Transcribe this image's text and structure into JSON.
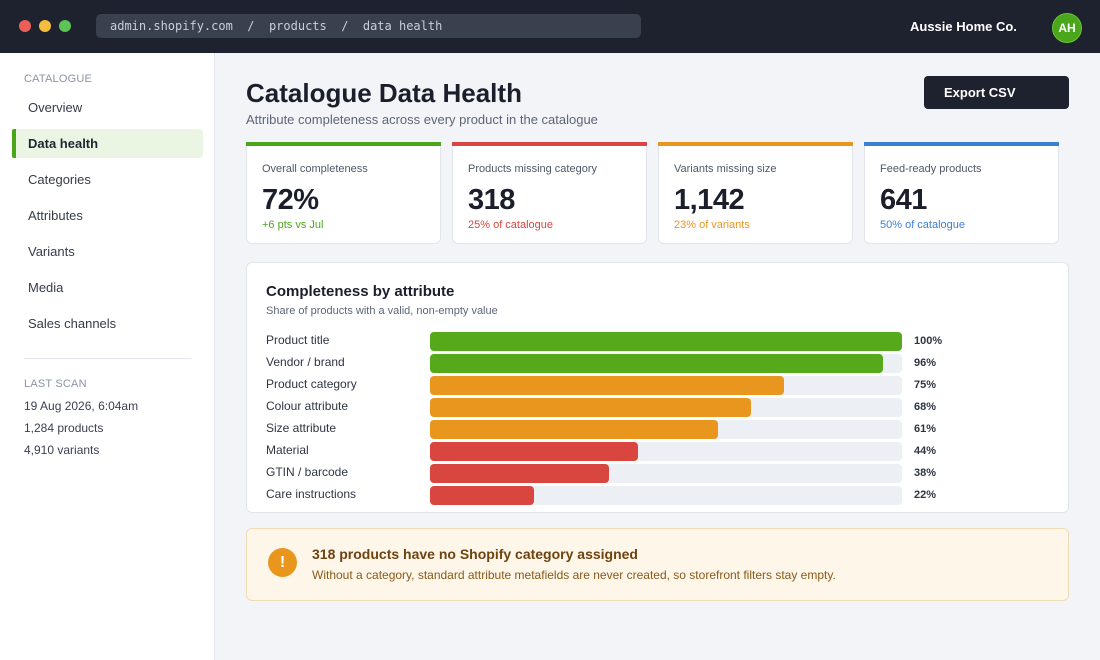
{
  "browser": {
    "address": "admin.shopify.com  /  products  /  data health",
    "store_name": "Aussie Home Co.",
    "avatar_initials": "AH"
  },
  "sidebar": {
    "section_label": "CATALOGUE",
    "items": [
      {
        "label": "Overview",
        "active": false
      },
      {
        "label": "Data health",
        "active": true
      },
      {
        "label": "Categories",
        "active": false
      },
      {
        "label": "Attributes",
        "active": false
      },
      {
        "label": "Variants",
        "active": false
      },
      {
        "label": "Media",
        "active": false
      },
      {
        "label": "Sales channels",
        "active": false
      }
    ],
    "last_scan": {
      "label": "LAST SCAN",
      "date": "19 Aug 2026, 6:04am",
      "products": "1,284 products",
      "variants": "4,910 variants"
    }
  },
  "header": {
    "title": "Catalogue Data Health",
    "subtitle": "Attribute completeness across every product in the catalogue",
    "export_label": "Export CSV"
  },
  "stats": [
    {
      "label": "Overall completeness",
      "value": "72%",
      "note": "+6 pts vs Jul",
      "color": "#4aa61a"
    },
    {
      "label": "Products missing category",
      "value": "318",
      "note": "25% of catalogue",
      "color": "#d9453f"
    },
    {
      "label": "Variants missing size",
      "value": "1,142",
      "note": "23% of variants",
      "color": "#e8961e"
    },
    {
      "label": "Feed-ready products",
      "value": "641",
      "note": "50% of catalogue",
      "color": "#3b7fd4"
    }
  ],
  "completeness": {
    "title": "Completeness by attribute",
    "subtitle": "Share of products with a valid, non-empty value",
    "rows": [
      {
        "label": "Product title",
        "percent": 100,
        "pct_label": "100%",
        "color": "#55a91a"
      },
      {
        "label": "Vendor / brand",
        "percent": 96,
        "pct_label": "96%",
        "color": "#55a91a"
      },
      {
        "label": "Product category",
        "percent": 75,
        "pct_label": "75%",
        "color": "#e8961e"
      },
      {
        "label": "Colour attribute",
        "percent": 68,
        "pct_label": "68%",
        "color": "#e8961e"
      },
      {
        "label": "Size attribute",
        "percent": 61,
        "pct_label": "61%",
        "color": "#e8961e"
      },
      {
        "label": "Material",
        "percent": 44,
        "pct_label": "44%",
        "color": "#d9453f"
      },
      {
        "label": "GTIN / barcode",
        "percent": 38,
        "pct_label": "38%",
        "color": "#d9453f"
      },
      {
        "label": "Care instructions",
        "percent": 22,
        "pct_label": "22%",
        "color": "#d9453f"
      }
    ]
  },
  "alert": {
    "icon": "!",
    "title": "318 products have no Shopify category assigned",
    "body": "Without a category, standard attribute metafields are never created, so storefront filters stay empty."
  }
}
